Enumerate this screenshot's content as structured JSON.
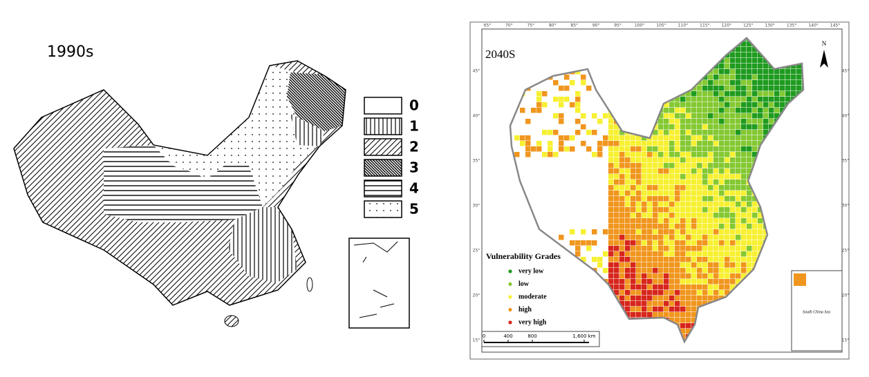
{
  "left_map": {
    "title": "1990s",
    "legend": [
      "0",
      "1",
      "2",
      "3",
      "4",
      "5"
    ]
  },
  "right_map": {
    "title": "2040S",
    "north": "N",
    "legend": {
      "title": "Vulnerability Grades",
      "items": [
        {
          "label": "very low",
          "color": "#1f9b1f"
        },
        {
          "label": "low",
          "color": "#84c832"
        },
        {
          "label": "moderate",
          "color": "#f7f032"
        },
        {
          "label": "high",
          "color": "#f0961e"
        },
        {
          "label": "very high",
          "color": "#d7261c"
        }
      ]
    },
    "scale": [
      "0",
      "400",
      "800",
      "1,600 km"
    ],
    "inset_label": "South China Sea",
    "longitudes": [
      "65°",
      "70°",
      "75°",
      "80°",
      "85°",
      "90°",
      "95°",
      "100°",
      "105°",
      "110°",
      "115°",
      "120°",
      "125°",
      "130°",
      "135°",
      "140°",
      "145°"
    ],
    "latitudes": [
      "45°",
      "40°",
      "35°",
      "30°",
      "25°",
      "20°",
      "15°"
    ]
  }
}
